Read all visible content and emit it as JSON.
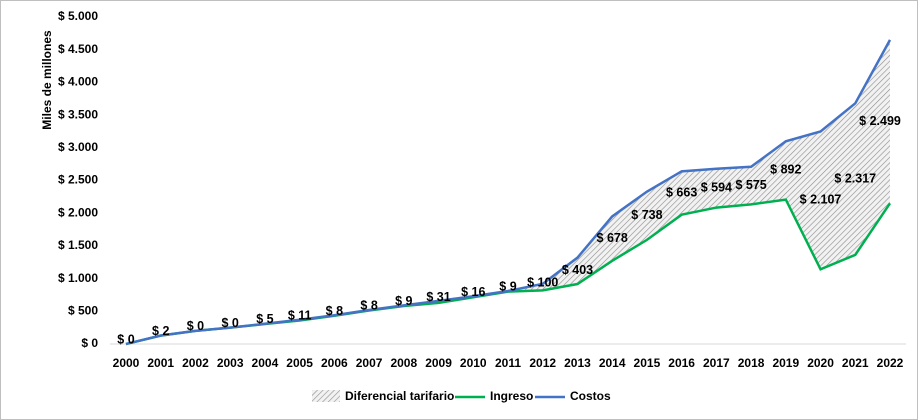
{
  "chart_data": {
    "type": "line",
    "y_label": "Miles de millones",
    "categories": [
      "2000",
      "2001",
      "2002",
      "2003",
      "2004",
      "2005",
      "2006",
      "2007",
      "2008",
      "2009",
      "2010",
      "2011",
      "2012",
      "2013",
      "2014",
      "2015",
      "2016",
      "2017",
      "2018",
      "2019",
      "2020",
      "2021",
      "2022"
    ],
    "series": [
      {
        "name": "Diferencial tarifario",
        "type": "area",
        "color": "#a6a6a6",
        "values": [
          0,
          2,
          0,
          0,
          5,
          11,
          8,
          8,
          9,
          31,
          16,
          9,
          100,
          403,
          678,
          738,
          663,
          594,
          575,
          892,
          2107,
          2317,
          2499
        ],
        "value_labels": [
          "$ 0",
          "$ 2",
          "$ 0",
          "$ 0",
          "$ 5",
          "$ 11",
          "$ 8",
          "$ 8",
          "$ 9",
          "$ 31",
          "$ 16",
          "$ 9",
          "$ 100",
          "$ 403",
          "$ 678",
          "$ 738",
          "$ 663",
          "$ 594",
          "$ 575",
          "$ 892",
          "$ 2.107",
          "$ 2.317",
          "$ 2.499"
        ]
      },
      {
        "name": "Ingreso",
        "color": "#00b050",
        "values": [
          0,
          128,
          200,
          250,
          305,
          359,
          432,
          512,
          581,
          629,
          714,
          801,
          820,
          917,
          1272,
          1592,
          1977,
          2086,
          2135,
          2208,
          1143,
          1363,
          2151
        ]
      },
      {
        "name": "Costos",
        "color": "#4472c4",
        "values": [
          0,
          130,
          200,
          250,
          310,
          370,
          440,
          520,
          590,
          660,
          730,
          810,
          920,
          1320,
          1950,
          2330,
          2640,
          2680,
          2710,
          3100,
          3250,
          3680,
          4650
        ]
      }
    ],
    "ylim": [
      0,
      5000
    ],
    "yticks": [
      {
        "value": 0,
        "label": "$ 0"
      },
      {
        "value": 500,
        "label": "$ 500"
      },
      {
        "value": 1000,
        "label": "$ 1.000"
      },
      {
        "value": 1500,
        "label": "$ 1.500"
      },
      {
        "value": 2000,
        "label": "$ 2.000"
      },
      {
        "value": 2500,
        "label": "$ 2.500"
      },
      {
        "value": 3000,
        "label": "$ 3.000"
      },
      {
        "value": 3500,
        "label": "$ 3.500"
      },
      {
        "value": 4000,
        "label": "$ 4.000"
      },
      {
        "value": 4500,
        "label": "$ 4.500"
      },
      {
        "value": 5000,
        "label": "$ 5.000"
      }
    ],
    "legend": "bottom"
  }
}
